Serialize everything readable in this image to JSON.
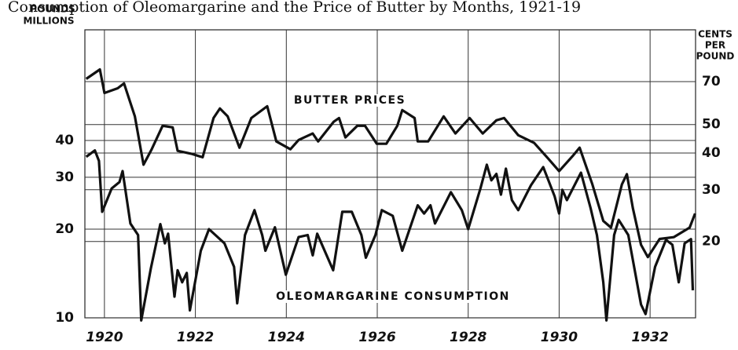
{
  "chart_data": {
    "type": "line",
    "title": "Consumption of Oleomargarine and the Price of Butter by Months, 1921-19",
    "y_label": [
      "POUNDS",
      "MILLIONS"
    ],
    "y2_label": [
      "CENTS",
      "PER",
      "POUND"
    ],
    "log_scale": true,
    "grid": true,
    "xlim": [
      1919.57,
      1933.0
    ],
    "xticks": [
      1920,
      1922,
      1924,
      1926,
      1928,
      1930,
      1932
    ],
    "ylim": [
      10,
      95
    ],
    "yticks": [
      10,
      20,
      30,
      40
    ],
    "y2lim": [
      11,
      105
    ],
    "y2ticks": [
      20,
      30,
      40,
      50,
      70
    ],
    "series": [
      {
        "name": "BUTTER PRICES",
        "color": "#111111",
        "axis": "y2",
        "x": [
          1919.6,
          1919.9,
          1920.0,
          1920.29,
          1920.43,
          1920.67,
          1920.86,
          1921.04,
          1921.28,
          1921.5,
          1921.61,
          1921.93,
          1922.16,
          1922.4,
          1922.54,
          1922.71,
          1922.97,
          1923.23,
          1923.58,
          1923.78,
          1924.09,
          1924.27,
          1924.58,
          1924.7,
          1925.04,
          1925.16,
          1925.3,
          1925.56,
          1925.73,
          1925.99,
          1926.2,
          1926.44,
          1926.55,
          1926.82,
          1926.89,
          1927.12,
          1927.46,
          1927.72,
          1928.03,
          1928.32,
          1928.62,
          1928.79,
          1929.1,
          1929.45,
          1929.76,
          1930.0,
          1930.31,
          1930.45,
          1930.73,
          1930.97,
          1931.14,
          1931.38,
          1931.49,
          1931.62,
          1931.8,
          1931.95,
          1932.21,
          1932.52,
          1932.87,
          1932.99
        ],
        "values": [
          71.5,
          77,
          64,
          66.4,
          69,
          53.3,
          36.5,
          41.2,
          49.5,
          48.9,
          40.7,
          39.7,
          38.7,
          52.6,
          56.7,
          53.3,
          41.7,
          52.6,
          57.7,
          43.8,
          41.2,
          44.3,
          46.6,
          43.8,
          51.1,
          52.6,
          45.2,
          49.5,
          49.5,
          43.0,
          43.0,
          49.5,
          56.0,
          52.6,
          43.8,
          43.8,
          53.3,
          46.6,
          52.6,
          46.6,
          51.7,
          52.6,
          46.0,
          43.3,
          38.3,
          34.7,
          39.3,
          41.7,
          31.3,
          23.5,
          22.3,
          31.3,
          33.9,
          26.0,
          19.5,
          17.7,
          20.4,
          20.7,
          22.3,
          24.9
        ]
      },
      {
        "name": "OLEOMARGARINE CONSUMPTION",
        "color": "#111111",
        "axis": "y",
        "x": [
          1919.6,
          1919.79,
          1919.88,
          1919.95,
          1920.16,
          1920.33,
          1920.4,
          1920.57,
          1920.74,
          1920.81,
          1921.02,
          1921.23,
          1921.33,
          1921.4,
          1921.54,
          1921.61,
          1921.71,
          1921.81,
          1921.88,
          1922.12,
          1922.3,
          1922.64,
          1922.85,
          1922.92,
          1923.09,
          1923.3,
          1923.47,
          1923.54,
          1923.75,
          1923.99,
          1924.27,
          1924.47,
          1924.58,
          1924.68,
          1925.03,
          1925.23,
          1925.44,
          1925.65,
          1925.75,
          1925.96,
          1926.1,
          1926.34,
          1926.55,
          1926.89,
          1927.03,
          1927.17,
          1927.27,
          1927.62,
          1927.86,
          1928.0,
          1928.27,
          1928.41,
          1928.51,
          1928.62,
          1928.72,
          1928.83,
          1928.96,
          1929.1,
          1929.38,
          1929.65,
          1929.9,
          1930.0,
          1930.07,
          1930.17,
          1930.48,
          1930.69,
          1930.83,
          1930.97,
          1931.04,
          1931.21,
          1931.31,
          1931.52,
          1931.8,
          1931.9,
          1932.11,
          1932.35,
          1932.49,
          1932.63,
          1932.76,
          1932.9,
          1932.94
        ],
        "values": [
          35.2,
          37.0,
          34.1,
          22.9,
          27.5,
          28.9,
          31.5,
          20.9,
          19.1,
          9.8,
          14.7,
          20.8,
          17.9,
          19.3,
          11.8,
          14.5,
          13.2,
          14.2,
          10.6,
          16.9,
          20.0,
          17.9,
          14.9,
          11.2,
          19.1,
          23.2,
          19.1,
          16.9,
          20.3,
          14.0,
          18.8,
          19.1,
          16.3,
          19.3,
          14.5,
          22.9,
          22.9,
          19.1,
          16.0,
          19.1,
          23.2,
          22.2,
          16.9,
          24.1,
          22.6,
          24.1,
          20.9,
          26.7,
          23.2,
          20.0,
          27.5,
          33.1,
          29.3,
          30.8,
          26.2,
          32.1,
          25.1,
          23.2,
          28.2,
          32.5,
          25.9,
          22.6,
          27.2,
          25.1,
          31.1,
          23.6,
          19.1,
          13.2,
          9.8,
          19.1,
          21.5,
          19.1,
          11.1,
          10.3,
          14.9,
          18.4,
          17.7,
          13.2,
          17.9,
          18.5,
          12.4
        ]
      }
    ]
  }
}
